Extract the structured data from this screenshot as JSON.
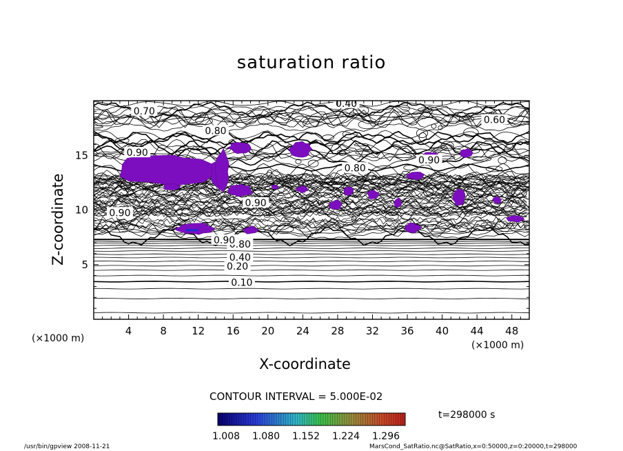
{
  "chart_data": {
    "type": "heatmap",
    "title": "saturation ratio",
    "xlabel": "X-coordinate",
    "ylabel": "Z-coordinate",
    "x_unit": "(×1000 m)",
    "y_unit": "(×1000 m)",
    "xlim": [
      0,
      50
    ],
    "ylim": [
      0,
      20
    ],
    "x_ticks": [
      4,
      8,
      12,
      16,
      20,
      24,
      28,
      32,
      36,
      40,
      44,
      48
    ],
    "y_ticks": [
      5,
      10,
      15
    ],
    "contour_interval": "CONTOUR INTERVAL = 5.000E-02",
    "contour_labels": [
      {
        "text": "0.10",
        "x": 17.0,
        "y": 3.3
      },
      {
        "text": "0.20",
        "x": 16.5,
        "y": 4.8
      },
      {
        "text": "0.40",
        "x": 16.8,
        "y": 5.6
      },
      {
        "text": "0.80",
        "x": 16.8,
        "y": 6.8
      },
      {
        "text": "0.90",
        "x": 18.6,
        "y": 10.6
      },
      {
        "text": "0.90",
        "x": 15.0,
        "y": 7.2
      },
      {
        "text": "0.80",
        "x": 14.0,
        "y": 17.2
      },
      {
        "text": "0.90",
        "x": 5.0,
        "y": 15.2
      },
      {
        "text": "0.70",
        "x": 5.8,
        "y": 19.0
      },
      {
        "text": "0.40",
        "x": 29.0,
        "y": 19.7
      },
      {
        "text": "0.60",
        "x": 46.0,
        "y": 18.2
      },
      {
        "text": "0.90",
        "x": 38.5,
        "y": 14.5
      },
      {
        "text": "0.80",
        "x": 30.0,
        "y": 13.8
      },
      {
        "text": "0.90",
        "x": 3.0,
        "y": 9.7
      }
    ],
    "shaded_threshold": "> 1.0",
    "colorbar": {
      "ticks": [
        "1.008",
        "1.080",
        "1.152",
        "1.224",
        "1.296"
      ],
      "range": [
        1.008,
        1.296
      ]
    }
  },
  "time_label": "t=298000 s",
  "footer_left": "/usr/bin/gpview   2008-11-21",
  "footer_right": "MarsCond_SatRatio.nc@SatRatio,x=0:50000,z=0:20000,t=298000"
}
